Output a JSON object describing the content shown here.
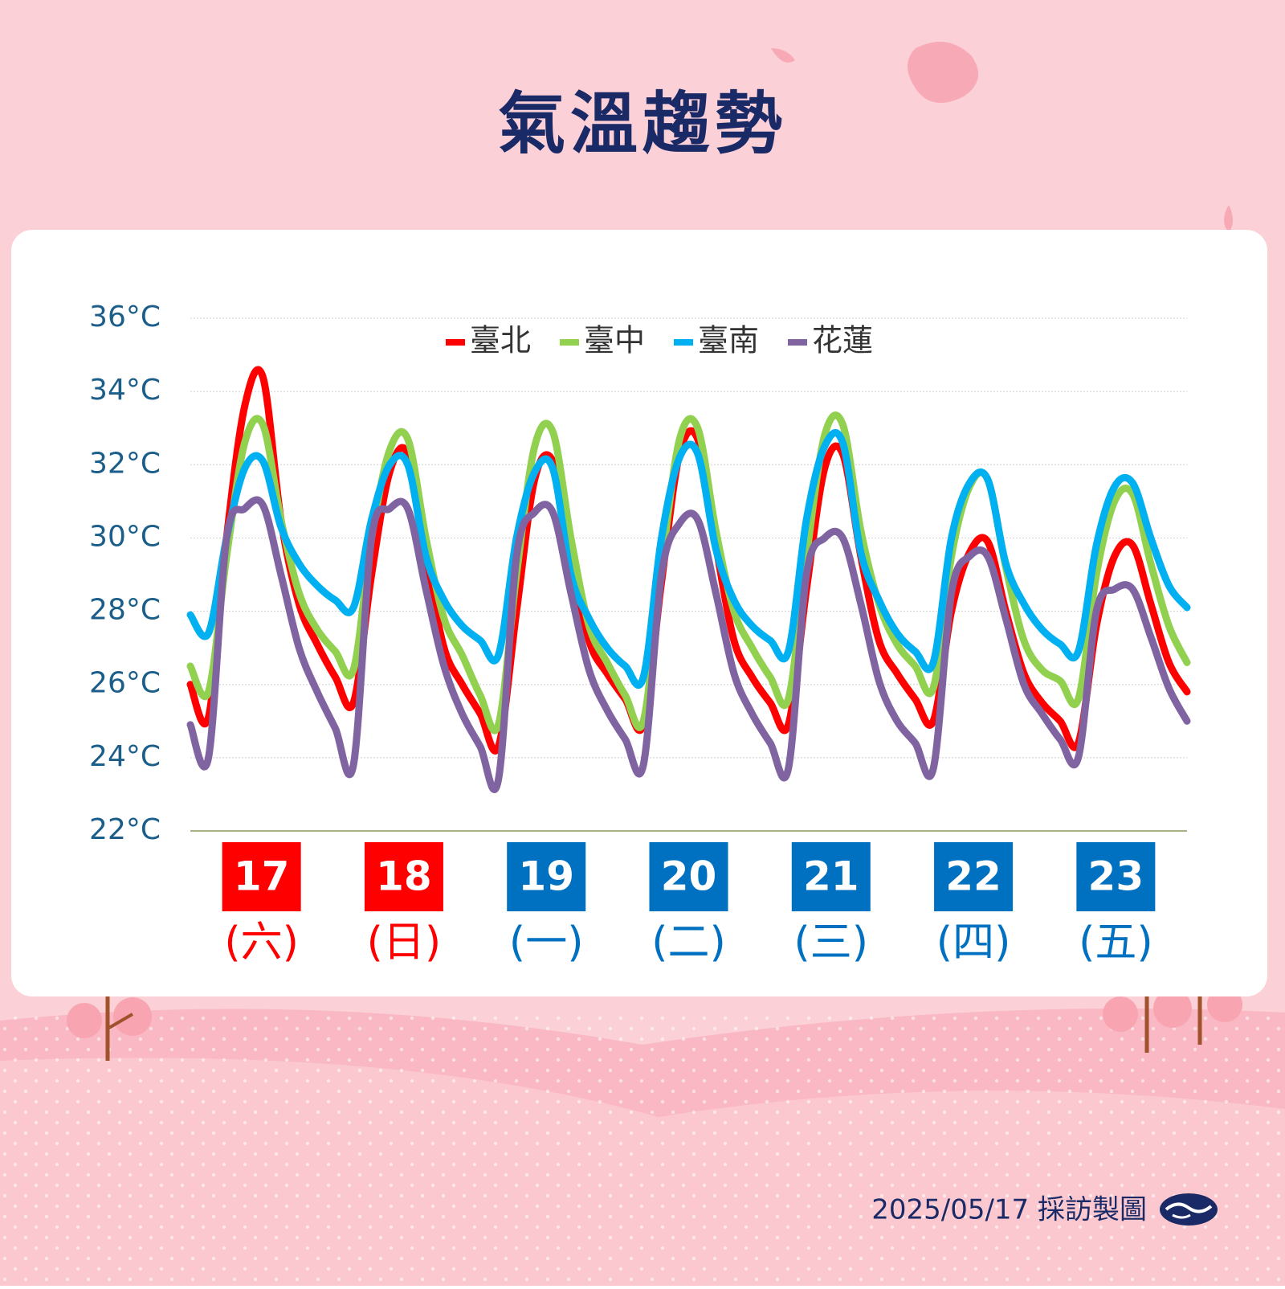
{
  "chart_data": {
    "type": "line",
    "title": "氣溫趨勢",
    "footer": "2025/05/17 採訪製圖",
    "ylim": [
      22,
      36
    ],
    "yticks": [
      {
        "value": 22,
        "label": "22°C"
      },
      {
        "value": 24,
        "label": "24°C"
      },
      {
        "value": 26,
        "label": "26°C"
      },
      {
        "value": 28,
        "label": "28°C"
      },
      {
        "value": 30,
        "label": "30°C"
      },
      {
        "value": 32,
        "label": "32°C"
      },
      {
        "value": 34,
        "label": "34°C"
      },
      {
        "value": 36,
        "label": "36°C"
      }
    ],
    "grid": true,
    "legend": "top",
    "days": [
      {
        "date": "17",
        "weekday": "(六)",
        "color": "#ff0000"
      },
      {
        "date": "18",
        "weekday": "(日)",
        "color": "#ff0000"
      },
      {
        "date": "19",
        "weekday": "(一)",
        "color": "#0070c0"
      },
      {
        "date": "20",
        "weekday": "(二)",
        "color": "#0070c0"
      },
      {
        "date": "21",
        "weekday": "(三)",
        "color": "#0070c0"
      },
      {
        "date": "22",
        "weekday": "(四)",
        "color": "#0070c0"
      },
      {
        "date": "23",
        "weekday": "(五)",
        "color": "#0070c0"
      }
    ],
    "series": [
      {
        "name": "臺北",
        "color": "#ff0000",
        "values": [
          26.0,
          25.1,
          30.0,
          33.6,
          34.4,
          30.5,
          28.2,
          27.1,
          26.2,
          25.5,
          29.0,
          31.8,
          32.3,
          29.5,
          27.0,
          26.0,
          25.2,
          24.3,
          28.0,
          31.6,
          32.1,
          29.6,
          27.2,
          26.3,
          25.6,
          24.9,
          28.8,
          32.3,
          32.7,
          29.8,
          27.2,
          26.2,
          25.5,
          24.9,
          28.6,
          31.9,
          32.3,
          29.5,
          27.2,
          26.3,
          25.6,
          25.0,
          28.0,
          29.6,
          29.9,
          28.0,
          26.3,
          25.5,
          25.0,
          24.4,
          27.6,
          29.5,
          29.8,
          28.2,
          26.6,
          25.8
        ]
      },
      {
        "name": "臺中",
        "color": "#92d050",
        "values": [
          26.5,
          25.8,
          29.5,
          32.6,
          33.1,
          30.5,
          28.5,
          27.5,
          26.9,
          26.4,
          30.0,
          32.4,
          32.7,
          30.0,
          27.8,
          26.8,
          25.7,
          24.9,
          29.0,
          32.5,
          32.9,
          30.0,
          27.6,
          26.6,
          25.7,
          25.0,
          29.2,
          32.7,
          33.0,
          30.2,
          28.0,
          27.0,
          26.2,
          25.6,
          29.5,
          32.8,
          33.1,
          30.2,
          28.2,
          27.1,
          26.5,
          25.9,
          29.5,
          31.4,
          31.6,
          29.2,
          27.2,
          26.4,
          26.1,
          25.6,
          29.0,
          31.0,
          31.2,
          29.3,
          27.6,
          26.6
        ]
      },
      {
        "name": "臺南",
        "color": "#00b0f0",
        "values": [
          27.9,
          27.4,
          30.0,
          31.9,
          32.1,
          30.3,
          29.3,
          28.7,
          28.3,
          28.1,
          30.5,
          32.0,
          32.0,
          29.5,
          28.3,
          27.6,
          27.2,
          26.8,
          30.0,
          31.8,
          31.9,
          29.0,
          27.8,
          27.0,
          26.5,
          26.2,
          30.0,
          32.2,
          32.3,
          29.7,
          28.3,
          27.6,
          27.2,
          26.9,
          30.5,
          32.5,
          32.6,
          29.6,
          28.3,
          27.4,
          26.9,
          26.6,
          30.0,
          31.5,
          31.6,
          29.3,
          28.2,
          27.5,
          27.1,
          26.9,
          29.8,
          31.4,
          31.5,
          30.0,
          28.7,
          28.1
        ]
      },
      {
        "name": "花蓮",
        "color": "#8064a2",
        "values": [
          24.9,
          24.0,
          30.0,
          30.8,
          30.9,
          29.0,
          27.0,
          25.8,
          24.8,
          23.8,
          30.0,
          30.8,
          30.8,
          28.6,
          26.5,
          25.2,
          24.3,
          23.4,
          29.5,
          30.7,
          30.7,
          28.5,
          26.4,
          25.3,
          24.5,
          23.8,
          29.0,
          30.4,
          30.5,
          28.5,
          26.3,
          25.2,
          24.4,
          23.7,
          29.0,
          30.0,
          30.0,
          28.2,
          26.1,
          25.0,
          24.4,
          23.7,
          28.5,
          29.5,
          29.5,
          27.8,
          26.0,
          25.2,
          24.5,
          24.0,
          28.0,
          28.6,
          28.6,
          27.3,
          25.9,
          25.0
        ]
      }
    ]
  }
}
